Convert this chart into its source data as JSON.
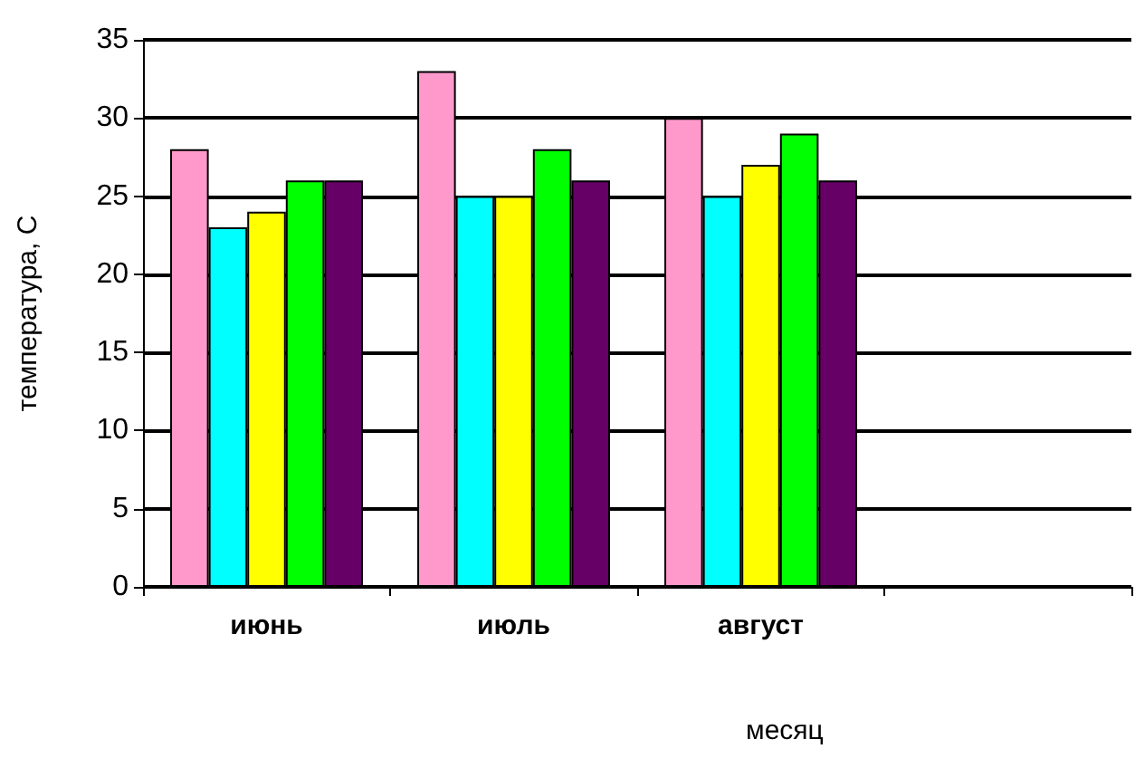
{
  "chart_data": {
    "type": "bar",
    "xlabel": "месяц",
    "ylabel": "температура, С",
    "categories": [
      "июнь",
      "июль",
      "август",
      null
    ],
    "series": [
      {
        "color": "#ff99cc",
        "values": [
          28,
          33,
          30,
          null
        ]
      },
      {
        "color": "#00ffff",
        "values": [
          23,
          25,
          25,
          null
        ]
      },
      {
        "color": "#ffff00",
        "values": [
          24,
          25,
          27,
          null
        ]
      },
      {
        "color": "#00ff00",
        "values": [
          26,
          28,
          29,
          null
        ]
      },
      {
        "color": "#660066",
        "values": [
          26,
          26,
          26,
          null
        ]
      }
    ],
    "ylim": [
      0,
      35
    ],
    "yticks": [
      0,
      5,
      10,
      15,
      20,
      25,
      30,
      35
    ],
    "grid": "y"
  }
}
